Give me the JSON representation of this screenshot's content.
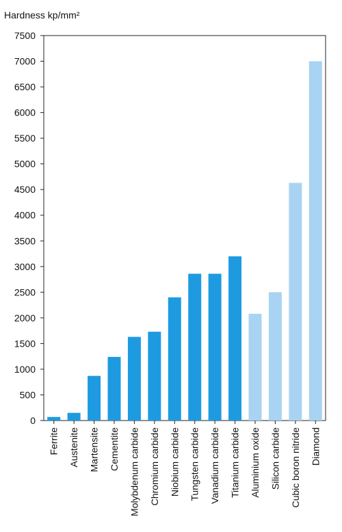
{
  "chart_data": {
    "type": "bar",
    "ylabel": "Hardness kp/mm²",
    "xlabel": "",
    "title": "",
    "ylim": [
      0,
      7500
    ],
    "yticks": [
      "0",
      "500",
      "1000",
      "1500",
      "2000",
      "2500",
      "3000",
      "3500",
      "4000",
      "4500",
      "5000",
      "5500",
      "6000",
      "6500",
      "7000",
      "7500"
    ],
    "grid": false,
    "categories": [
      "Ferrite",
      "Austenite",
      "Martensite",
      "Cementite",
      "Molybdenum carbide",
      "Chromium carbide",
      "Niobium carbide",
      "Tungsten carbide",
      "Vanadium carbide",
      "Titanium carbide",
      "Aluminium oxide",
      "Silicon carbide",
      "Cubic boron nitride",
      "Diamond"
    ],
    "values": [
      70,
      150,
      870,
      1240,
      1630,
      1730,
      2400,
      2860,
      2860,
      3200,
      2080,
      2500,
      4630,
      7000
    ],
    "bar_colors": [
      "#1e9be0",
      "#1e9be0",
      "#1e9be0",
      "#1e9be0",
      "#1e9be0",
      "#1e9be0",
      "#1e9be0",
      "#1e9be0",
      "#1e9be0",
      "#1e9be0",
      "#a9d3f2",
      "#a9d3f2",
      "#a9d3f2",
      "#a9d3f2"
    ]
  }
}
